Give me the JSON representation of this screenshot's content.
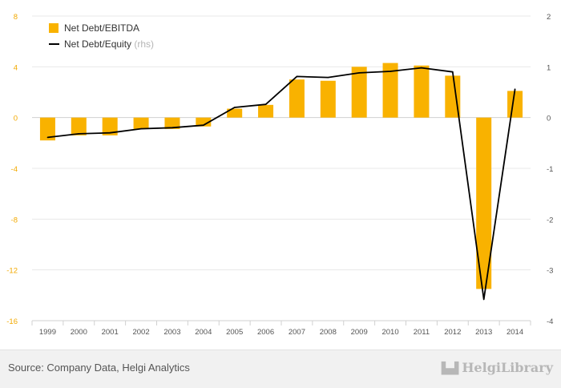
{
  "chart_data": {
    "type": "bar+line",
    "categories": [
      "1999",
      "2000",
      "2001",
      "2002",
      "2003",
      "2004",
      "2005",
      "2006",
      "2007",
      "2008",
      "2009",
      "2010",
      "2011",
      "2012",
      "2013",
      "2014"
    ],
    "series": [
      {
        "name": "Net Debt/EBITDA",
        "type": "bar",
        "axis": "left",
        "color": "#f9b200",
        "values": [
          -1.8,
          -1.4,
          -1.4,
          -0.9,
          -0.9,
          -0.7,
          0.7,
          1.0,
          3.0,
          2.9,
          4.0,
          4.3,
          4.1,
          3.3,
          -13.5,
          2.1
        ]
      },
      {
        "name": "Net Debt/Equity",
        "note": "(rhs)",
        "type": "line",
        "axis": "right",
        "color": "#000000",
        "values": [
          -0.39,
          -0.32,
          -0.3,
          -0.22,
          -0.2,
          -0.15,
          0.2,
          0.26,
          0.81,
          0.79,
          0.88,
          0.91,
          0.98,
          0.9,
          -3.58,
          0.56
        ]
      }
    ],
    "y_left": {
      "ylim": [
        -16,
        8
      ],
      "ticks": [
        "8",
        "4",
        "0",
        "-4",
        "-8",
        "-12",
        "-16"
      ]
    },
    "y_right": {
      "ylim": [
        -4,
        2
      ],
      "ticks": [
        "2",
        "1",
        "0",
        "-1",
        "-2",
        "-3",
        "-4"
      ]
    },
    "grid": true,
    "legend": "top-left"
  },
  "footer": {
    "source": "Source: Company Data, Helgi Analytics",
    "brand": "HelgiLibrary"
  }
}
